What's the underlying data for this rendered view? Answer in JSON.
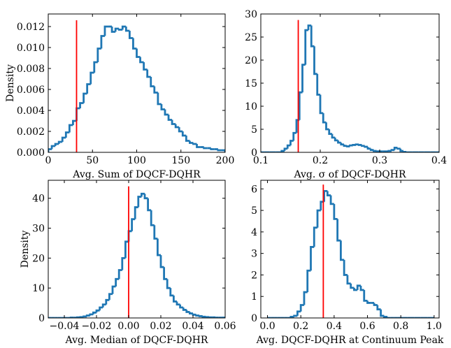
{
  "chart_data": [
    {
      "type": "histogram",
      "xlabel": "Avg. Sum of DQCF-DQHR",
      "ylabel": "Density",
      "color": "#1f77b4",
      "bins": [
        0,
        4,
        8,
        12,
        16,
        20,
        24,
        28,
        32,
        36,
        40,
        44,
        48,
        52,
        56,
        60,
        64,
        68,
        72,
        76,
        80,
        84,
        88,
        92,
        96,
        100,
        104,
        108,
        112,
        116,
        120,
        124,
        128,
        132,
        136,
        140,
        144,
        148,
        152,
        156,
        160,
        164,
        168,
        172,
        176,
        180,
        184,
        188,
        192,
        196,
        200
      ],
      "values": [
        0.0003,
        0.0006,
        0.0008,
        0.001,
        0.0014,
        0.0019,
        0.0026,
        0.003,
        0.0042,
        0.0047,
        0.0056,
        0.0065,
        0.0076,
        0.0086,
        0.0099,
        0.0111,
        0.012,
        0.012,
        0.0115,
        0.0118,
        0.0117,
        0.012,
        0.0116,
        0.0109,
        0.0099,
        0.0091,
        0.0086,
        0.0079,
        0.0072,
        0.0063,
        0.0057,
        0.0046,
        0.0041,
        0.0036,
        0.0031,
        0.0027,
        0.0024,
        0.002,
        0.0016,
        0.0011,
        0.0009,
        0.0008,
        0.0005,
        0.0005,
        0.0004,
        0.0004,
        0.0003,
        0.0003,
        0.0002,
        0.0002
      ],
      "vline": {
        "x": 32,
        "ymax": 0.0126,
        "color": "#ff0000"
      },
      "xlim": [
        0,
        200
      ],
      "xticks": [
        0,
        50,
        100,
        150,
        200
      ],
      "ylim": [
        0,
        0.0132
      ],
      "yticks": [
        {
          "value": 0,
          "label": "0.000"
        },
        {
          "value": 0.002,
          "label": "0.002"
        },
        {
          "value": 0.004,
          "label": "0.004"
        },
        {
          "value": 0.006,
          "label": "0.006"
        },
        {
          "value": 0.008,
          "label": "0.008"
        },
        {
          "value": 0.01,
          "label": "0.010"
        },
        {
          "value": 0.012,
          "label": "0.012"
        }
      ]
    },
    {
      "type": "histogram",
      "xlabel": "Avg. σ of DQCF-DQHR",
      "color": "#1f77b4",
      "bins": [
        0.1,
        0.105,
        0.11,
        0.115,
        0.12,
        0.125,
        0.13,
        0.135,
        0.14,
        0.145,
        0.15,
        0.155,
        0.16,
        0.165,
        0.17,
        0.175,
        0.18,
        0.185,
        0.19,
        0.195,
        0.2,
        0.205,
        0.21,
        0.215,
        0.22,
        0.225,
        0.23,
        0.235,
        0.24,
        0.245,
        0.25,
        0.255,
        0.26,
        0.265,
        0.27,
        0.275,
        0.28,
        0.285,
        0.29,
        0.295,
        0.3,
        0.305,
        0.31,
        0.315,
        0.32,
        0.325,
        0.33,
        0.335,
        0.34,
        0.345,
        0.35,
        0.355,
        0.36,
        0.365,
        0.37,
        0.375,
        0.38,
        0.385,
        0.39,
        0.395,
        0.4
      ],
      "values": [
        0,
        0,
        0,
        0,
        0,
        0,
        0,
        0.3,
        0.8,
        1.5,
        2.5,
        4.2,
        7,
        13,
        19,
        26.5,
        27.5,
        23,
        17,
        12.5,
        8.5,
        6.5,
        5,
        4,
        3.2,
        2.6,
        2.1,
        1.7,
        1.4,
        1.3,
        1.5,
        1.6,
        1.7,
        1.6,
        1.4,
        1.2,
        0.8,
        0.5,
        0.3,
        0.2,
        0.2,
        0.2,
        0.2,
        0.3,
        0.5,
        1.0,
        0.8,
        0.3,
        0.1,
        0,
        0,
        0,
        0,
        0,
        0,
        0,
        0,
        0,
        0,
        0
      ],
      "vline": {
        "x": 0.163,
        "ymax": 28.7,
        "color": "#ff0000"
      },
      "xlim": [
        0.1,
        0.4
      ],
      "xticks": [
        0.1,
        0.2,
        0.3,
        0.4
      ],
      "ylim": [
        0,
        30
      ],
      "yticks": [
        0,
        5,
        10,
        15,
        20,
        25,
        30
      ]
    },
    {
      "type": "histogram",
      "xlabel": "Avg. Median of DQCF-DQHR",
      "ylabel": "Density",
      "color": "#1f77b4",
      "bins": [
        -0.05,
        -0.048,
        -0.046,
        -0.044,
        -0.042,
        -0.04,
        -0.038,
        -0.036,
        -0.034,
        -0.032,
        -0.03,
        -0.028,
        -0.026,
        -0.024,
        -0.022,
        -0.02,
        -0.018,
        -0.016,
        -0.014,
        -0.012,
        -0.01,
        -0.008,
        -0.006,
        -0.004,
        -0.002,
        0,
        0.002,
        0.004,
        0.006,
        0.008,
        0.01,
        0.012,
        0.014,
        0.016,
        0.018,
        0.02,
        0.022,
        0.024,
        0.026,
        0.028,
        0.03,
        0.032,
        0.034,
        0.036,
        0.038,
        0.04,
        0.042,
        0.044,
        0.046,
        0.048,
        0.05,
        0.052,
        0.054,
        0.056,
        0.058,
        0.06
      ],
      "values": [
        0,
        0,
        0,
        0,
        0,
        0,
        0,
        0.1,
        0.1,
        0.2,
        0.3,
        0.5,
        0.8,
        1.2,
        1.8,
        2.5,
        3.5,
        4.5,
        6,
        8,
        10.5,
        13,
        16,
        20,
        25.5,
        29,
        33,
        37,
        40.5,
        41.5,
        40,
        36,
        31,
        26.5,
        21,
        17,
        13,
        10,
        7.5,
        5.5,
        4.5,
        3.5,
        2.7,
        2,
        1.5,
        1.1,
        0.8,
        0.6,
        0.4,
        0.3,
        0.2,
        0.2,
        0.1,
        0.1,
        0.1
      ],
      "vline": {
        "x": 0,
        "ymax": 44,
        "color": "#ff0000"
      },
      "xlim": [
        -0.05,
        0.06
      ],
      "xticks": [
        {
          "value": -0.04,
          "label": "−0.04"
        },
        {
          "value": -0.02,
          "label": "−0.02"
        },
        {
          "value": 0,
          "label": "0.00"
        },
        0.02,
        0.04,
        0.06
      ],
      "ylim": [
        0,
        46
      ],
      "yticks": [
        0,
        10,
        20,
        30,
        40
      ]
    },
    {
      "type": "histogram",
      "xlabel": "Avg. DQCF-DQHR at Continuum Peak",
      "color": "#1f77b4",
      "bins": [
        0,
        0.02,
        0.04,
        0.06,
        0.08,
        0.1,
        0.12,
        0.14,
        0.16,
        0.18,
        0.2,
        0.22,
        0.24,
        0.26,
        0.28,
        0.3,
        0.32,
        0.34,
        0.36,
        0.38,
        0.4,
        0.42,
        0.44,
        0.46,
        0.48,
        0.5,
        0.52,
        0.54,
        0.56,
        0.58,
        0.6,
        0.62,
        0.64,
        0.66,
        0.68,
        0.7,
        0.72,
        0.74,
        0.76,
        0.78,
        0.8,
        0.82,
        0.84,
        0.86,
        0.88,
        0.9,
        0.92,
        0.94,
        0.96,
        0.98,
        1
      ],
      "values": [
        0,
        0,
        0,
        0,
        0,
        0,
        0,
        0.05,
        0.1,
        0.3,
        0.6,
        1.2,
        2.2,
        3.3,
        4.2,
        5.0,
        5.4,
        5.9,
        5.7,
        5.3,
        4.6,
        3.6,
        2.7,
        2.0,
        1.6,
        1.4,
        1.3,
        1.5,
        1.3,
        0.8,
        0.7,
        0.7,
        0.6,
        0.4,
        0.1,
        0.05,
        0,
        0,
        0,
        0,
        0,
        0,
        0,
        0,
        0,
        0,
        0,
        0,
        0,
        0
      ],
      "vline": {
        "x": 0.335,
        "ymax": 6.2,
        "color": "#ff0000"
      },
      "xlim": [
        -0.04,
        1.03
      ],
      "xticks": [
        {
          "value": 0,
          "label": "0.0"
        },
        0.2,
        0.4,
        0.6,
        0.8,
        {
          "value": 1,
          "label": "1.0"
        }
      ],
      "ylim": [
        0,
        6.4
      ],
      "yticks": [
        0,
        1,
        2,
        3,
        4,
        5,
        6
      ]
    }
  ]
}
